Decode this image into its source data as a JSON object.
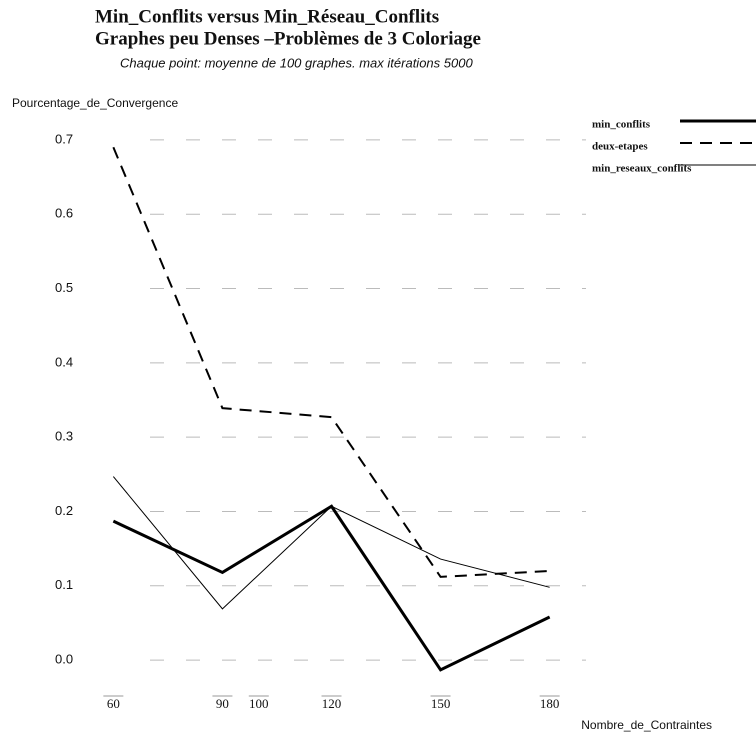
{
  "chart_data": {
    "type": "line",
    "title": "Min_Conflits versus Min_Réseau_Conflits",
    "subtitle_line": "Graphes peu Denses –Problèmes de 3 Coloriage",
    "note": "Chaque point: moyenne de 100 graphes. max itérations 5000",
    "ylabel": "Pourcentage_de_Convergence",
    "xlabel": "Nombre_de_Contraintes",
    "x": [
      60,
      90,
      120,
      150,
      180
    ],
    "series": [
      {
        "name": "min_conflits",
        "color": "#000000",
        "line_width": 3,
        "dash": false,
        "values": [
          0.187,
          0.118,
          0.207,
          -0.013,
          0.058
        ]
      },
      {
        "name": "deux-etapes",
        "color": "#000000",
        "line_width": 2,
        "dash": true,
        "values": [
          0.69,
          0.339,
          0.327,
          0.112,
          0.12
        ]
      },
      {
        "name": "min_reseaux_conflits",
        "color": "#000000",
        "line_width": 1,
        "dash": false,
        "values": [
          0.247,
          0.069,
          0.207,
          0.136,
          0.098
        ]
      }
    ],
    "xlim": [
      50,
      190
    ],
    "xticks": [
      60,
      90,
      100,
      120,
      150,
      180
    ],
    "ylim": [
      -0.02,
      0.72
    ],
    "yticks": [
      {
        "value": 0,
        "label": "0.0"
      },
      0.1,
      0.2,
      0.3,
      0.4,
      0.5,
      0.6,
      0.7
    ],
    "grid": true,
    "legend": "upper right"
  }
}
